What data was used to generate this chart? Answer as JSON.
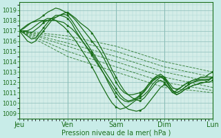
{
  "xlabel": "Pression niveau de la mer( hPa )",
  "background_color": "#c8ece8",
  "plot_bg_color": "#d4ede8",
  "grid_color_major": "#8bbdb8",
  "grid_color_minor": "#a8d4d0",
  "line_color": "#1a6e1a",
  "ylim": [
    1008.5,
    1019.8
  ],
  "yticks": [
    1009,
    1010,
    1011,
    1012,
    1013,
    1014,
    1015,
    1016,
    1017,
    1018,
    1019
  ],
  "xlim": [
    0,
    96
  ],
  "xtick_positions": [
    0,
    24,
    48,
    72,
    96
  ],
  "xtick_labels": [
    "Jeu",
    "Ven",
    "Sam",
    "Dim",
    "Lun"
  ],
  "vlines": [
    24,
    48,
    72
  ],
  "lines_solid": [
    [
      0,
      1017,
      2,
      1017,
      4,
      1016.9,
      6,
      1016.8,
      8,
      1017.1,
      10,
      1017.4,
      12,
      1017.8,
      14,
      1018.0,
      16,
      1018.2,
      18,
      1018.3,
      20,
      1018.5,
      22,
      1018.7,
      24,
      1018.8,
      26,
      1018.5,
      28,
      1018.2,
      30,
      1017.8,
      32,
      1017.5,
      34,
      1017.2,
      36,
      1016.8,
      38,
      1016.2,
      40,
      1015.5,
      42,
      1014.8,
      44,
      1014.0,
      46,
      1013.2,
      48,
      1012.5,
      50,
      1011.8,
      52,
      1011.2,
      54,
      1010.8,
      56,
      1010.5,
      58,
      1010.3,
      60,
      1010.2,
      62,
      1010.5,
      64,
      1011.0,
      66,
      1011.5,
      68,
      1012.0,
      70,
      1012.2,
      72,
      1012.0,
      74,
      1011.5,
      76,
      1011.0,
      78,
      1011.2,
      80,
      1011.5,
      82,
      1011.8,
      84,
      1012.0,
      86,
      1012.2,
      88,
      1012.3,
      90,
      1012.5,
      92,
      1012.5,
      94,
      1012.5,
      96,
      1012.5
    ],
    [
      0,
      1017,
      2,
      1017.2,
      4,
      1017.5,
      6,
      1017.8,
      8,
      1018.0,
      10,
      1018.2,
      12,
      1018.5,
      14,
      1018.8,
      16,
      1019.0,
      18,
      1019.2,
      20,
      1019.1,
      22,
      1018.9,
      24,
      1018.7,
      26,
      1018.4,
      28,
      1018.0,
      30,
      1017.5,
      32,
      1017.0,
      34,
      1016.5,
      36,
      1016.0,
      38,
      1015.5,
      40,
      1015.0,
      42,
      1014.3,
      44,
      1013.5,
      46,
      1012.8,
      48,
      1012.0,
      50,
      1011.4,
      52,
      1011.0,
      54,
      1010.8,
      56,
      1010.8,
      58,
      1010.9,
      60,
      1011.0,
      62,
      1011.3,
      64,
      1011.8,
      66,
      1012.2,
      68,
      1012.5,
      70,
      1012.6,
      72,
      1012.5,
      74,
      1012.0,
      76,
      1011.5,
      78,
      1011.3,
      80,
      1011.5,
      82,
      1011.8,
      84,
      1012.0,
      86,
      1012.2,
      88,
      1012.3,
      90,
      1012.5,
      92,
      1012.5,
      94,
      1012.8,
      96,
      1013.0
    ],
    [
      0,
      1017,
      2,
      1016.5,
      4,
      1016.0,
      6,
      1015.8,
      8,
      1016.0,
      10,
      1016.5,
      12,
      1017.0,
      14,
      1017.5,
      16,
      1018.0,
      18,
      1018.3,
      20,
      1018.5,
      22,
      1018.6,
      24,
      1018.5,
      26,
      1018.0,
      28,
      1017.4,
      30,
      1016.8,
      32,
      1016.2,
      34,
      1015.6,
      36,
      1015.0,
      38,
      1014.4,
      40,
      1013.8,
      42,
      1013.2,
      44,
      1012.6,
      46,
      1012.0,
      48,
      1011.4,
      50,
      1010.8,
      52,
      1010.4,
      54,
      1010.2,
      56,
      1010.3,
      58,
      1010.5,
      60,
      1010.8,
      62,
      1011.2,
      64,
      1011.8,
      66,
      1012.3,
      68,
      1012.6,
      70,
      1012.8,
      72,
      1012.5,
      74,
      1011.8,
      76,
      1011.2,
      78,
      1011.0,
      80,
      1011.2,
      82,
      1011.5,
      84,
      1011.8,
      86,
      1012.0,
      88,
      1012.2,
      90,
      1012.3,
      92,
      1012.3,
      94,
      1012.3,
      96,
      1012.5
    ],
    [
      0,
      1017,
      2,
      1016.8,
      4,
      1016.5,
      6,
      1016.2,
      8,
      1016.3,
      10,
      1016.8,
      12,
      1017.3,
      14,
      1017.8,
      16,
      1018.2,
      18,
      1018.5,
      20,
      1018.5,
      22,
      1018.4,
      24,
      1018.2,
      26,
      1017.7,
      28,
      1017.0,
      30,
      1016.4,
      32,
      1015.8,
      34,
      1015.2,
      36,
      1014.6,
      38,
      1014.0,
      40,
      1013.4,
      42,
      1012.8,
      44,
      1012.2,
      46,
      1011.6,
      48,
      1011.0,
      50,
      1010.5,
      52,
      1010.2,
      54,
      1010.1,
      56,
      1010.2,
      58,
      1010.4,
      60,
      1010.7,
      62,
      1011.1,
      64,
      1011.6,
      66,
      1012.1,
      68,
      1012.4,
      70,
      1012.6,
      72,
      1012.3,
      74,
      1011.7,
      76,
      1011.2,
      78,
      1011.0,
      80,
      1011.2,
      82,
      1011.5,
      84,
      1011.8,
      86,
      1012.0,
      88,
      1012.1,
      90,
      1012.2,
      92,
      1012.2,
      94,
      1012.3,
      96,
      1012.5
    ],
    [
      0,
      1017,
      2,
      1017.3,
      4,
      1017.6,
      6,
      1017.8,
      8,
      1017.9,
      10,
      1018.0,
      12,
      1018.0,
      14,
      1018.0,
      16,
      1018.0,
      18,
      1018.0,
      20,
      1017.9,
      22,
      1017.8,
      24,
      1017.5,
      26,
      1017.2,
      28,
      1016.8,
      30,
      1016.3,
      32,
      1015.8,
      34,
      1015.3,
      36,
      1014.8,
      38,
      1014.2,
      40,
      1013.5,
      42,
      1012.8,
      44,
      1012.0,
      46,
      1011.3,
      48,
      1010.6,
      50,
      1010.1,
      52,
      1009.7,
      54,
      1009.4,
      56,
      1009.3,
      58,
      1009.2,
      60,
      1009.3,
      62,
      1009.5,
      64,
      1010.0,
      66,
      1010.5,
      68,
      1011.0,
      70,
      1011.5,
      72,
      1011.8,
      74,
      1011.5,
      76,
      1011.0,
      78,
      1010.8,
      80,
      1011.0,
      82,
      1011.3,
      84,
      1011.5,
      86,
      1011.7,
      88,
      1011.8,
      90,
      1011.9,
      92,
      1012.0,
      94,
      1012.0,
      96,
      1012.2
    ],
    [
      0,
      1017,
      2,
      1017.0,
      4,
      1017.0,
      6,
      1017.2,
      8,
      1017.5,
      10,
      1017.8,
      12,
      1018.0,
      14,
      1018.2,
      16,
      1018.2,
      18,
      1018.0,
      20,
      1017.7,
      22,
      1017.4,
      24,
      1017.0,
      26,
      1016.5,
      28,
      1016.0,
      30,
      1015.4,
      32,
      1014.8,
      34,
      1014.2,
      36,
      1013.5,
      38,
      1012.8,
      40,
      1012.0,
      42,
      1011.3,
      44,
      1010.6,
      46,
      1010.0,
      48,
      1009.6,
      50,
      1009.4,
      52,
      1009.5,
      54,
      1009.7,
      56,
      1010.0,
      58,
      1010.3,
      60,
      1010.5,
      62,
      1010.8,
      64,
      1011.2,
      66,
      1011.8,
      68,
      1012.2,
      70,
      1012.5,
      72,
      1012.3,
      74,
      1011.8,
      76,
      1011.2,
      78,
      1010.8,
      80,
      1011.0,
      82,
      1011.3,
      84,
      1011.5,
      86,
      1011.7,
      88,
      1011.8,
      90,
      1012.0,
      92,
      1012.0,
      94,
      1012.2,
      96,
      1012.5
    ]
  ],
  "lines_dashed": [
    [
      0,
      1017,
      24,
      1016.5,
      48,
      1015.5,
      72,
      1014.0,
      96,
      1013.0
    ],
    [
      0,
      1017,
      24,
      1016.2,
      48,
      1015.0,
      72,
      1013.5,
      96,
      1012.5
    ],
    [
      0,
      1017,
      24,
      1015.8,
      48,
      1014.5,
      72,
      1013.0,
      96,
      1012.0
    ],
    [
      0,
      1017,
      24,
      1015.5,
      48,
      1014.0,
      72,
      1012.5,
      96,
      1011.5
    ],
    [
      0,
      1017,
      24,
      1015.0,
      48,
      1013.5,
      72,
      1012.0,
      96,
      1011.2
    ],
    [
      0,
      1017,
      24,
      1014.5,
      48,
      1013.0,
      72,
      1011.5,
      96,
      1011.0
    ]
  ]
}
